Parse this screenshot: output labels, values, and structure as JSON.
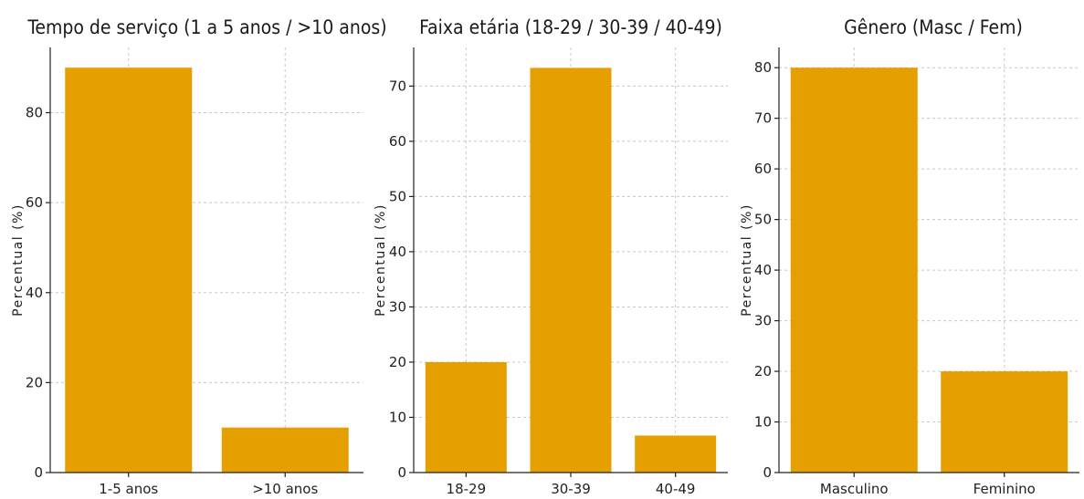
{
  "colors": {
    "bar": "#E69F00"
  },
  "chart_data": [
    {
      "type": "bar",
      "title": "Tempo de serviço (1 a 5 anos / >10 anos)",
      "xlabel": "",
      "ylabel": "Percentual (%)",
      "categories": [
        "1-5 anos",
        ">10 anos"
      ],
      "values": [
        90,
        10
      ],
      "ylim": [
        0,
        94.5
      ],
      "yticks": [
        0,
        20,
        40,
        60,
        80
      ],
      "grid": true
    },
    {
      "type": "bar",
      "title": "Faixa etária (18-29 / 30-39 / 40-49)",
      "xlabel": "",
      "ylabel": "Percentual (%)",
      "categories": [
        "18-29",
        "30-39",
        "40-49"
      ],
      "values": [
        20,
        73.3,
        6.7
      ],
      "ylim": [
        0,
        77
      ],
      "yticks": [
        0,
        10,
        20,
        30,
        40,
        50,
        60,
        70
      ],
      "grid": true
    },
    {
      "type": "bar",
      "title": "Gênero (Masc / Fem)",
      "xlabel": "",
      "ylabel": "Percentual (%)",
      "categories": [
        "Masculino",
        "Feminino"
      ],
      "values": [
        80,
        20
      ],
      "ylim": [
        0,
        84
      ],
      "yticks": [
        0,
        10,
        20,
        30,
        40,
        50,
        60,
        70,
        80
      ],
      "grid": true
    }
  ]
}
